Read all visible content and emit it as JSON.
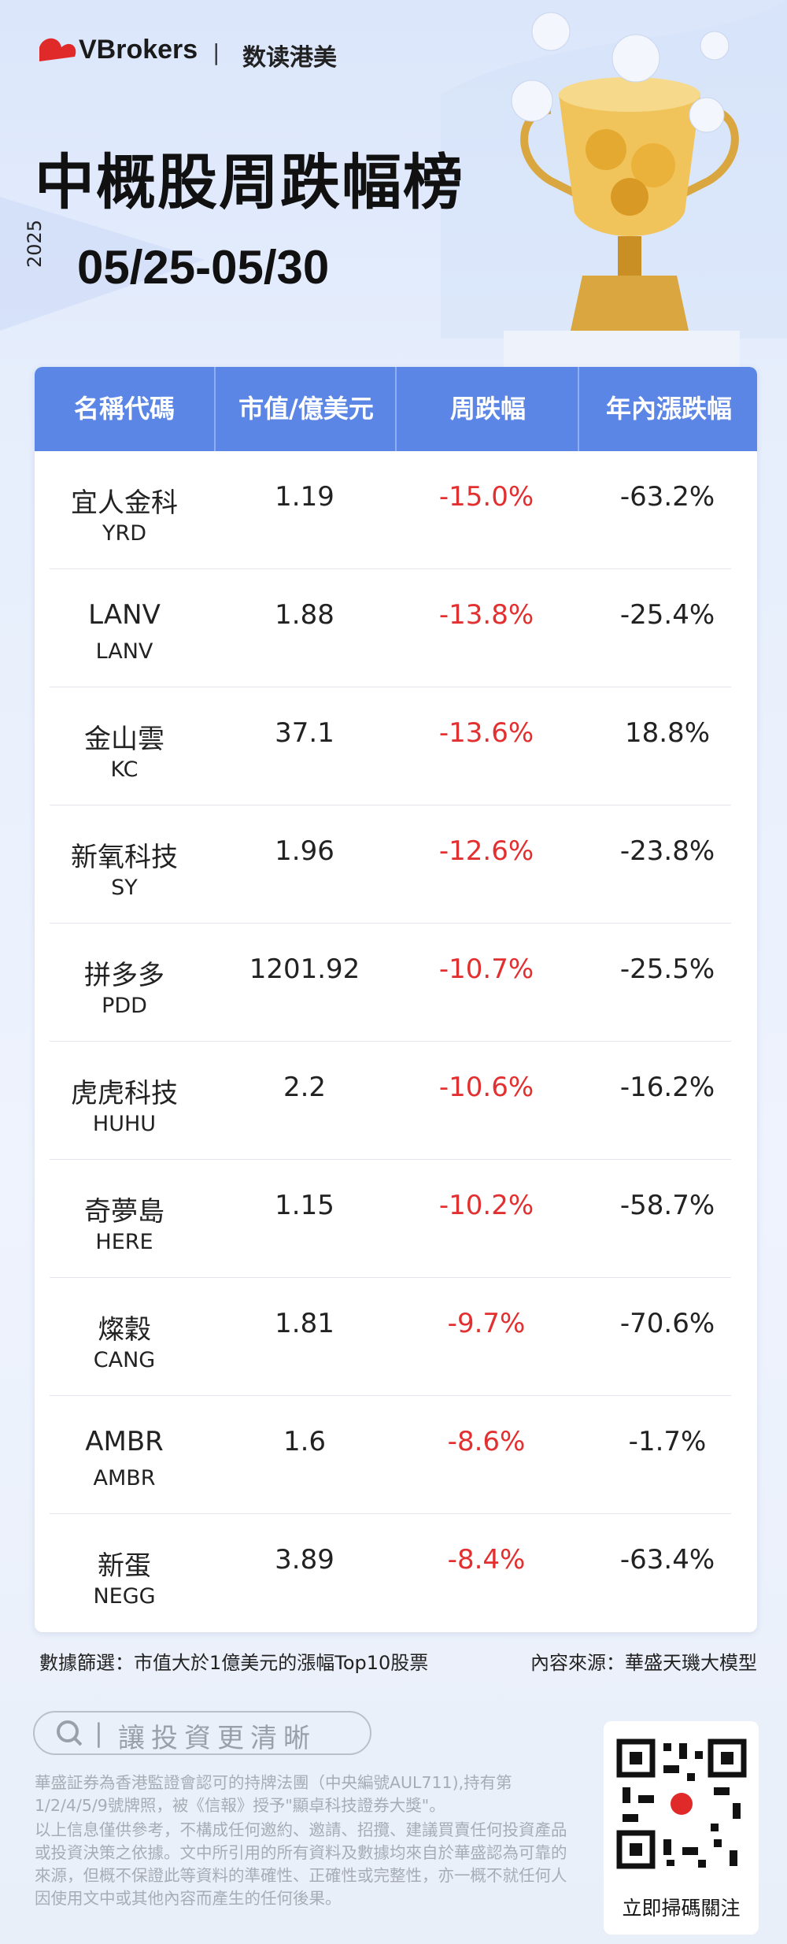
{
  "header": {
    "brand": "VBrokers",
    "subbrand": "数读港美",
    "title": "中概股周跌幅榜",
    "year": "2025",
    "date_range": "05/25-05/30"
  },
  "table": {
    "columns": [
      "名稱代碼",
      "市值/億美元",
      "周跌幅",
      "年內漲跌幅"
    ],
    "rows": [
      {
        "name": "宜人金科",
        "ticker": "YRD",
        "market_cap": "1.19",
        "weekly": "-15.0%",
        "ytd": "-63.2%"
      },
      {
        "name": "LANV",
        "ticker": "LANV",
        "market_cap": "1.88",
        "weekly": "-13.8%",
        "ytd": "-25.4%"
      },
      {
        "name": "金山雲",
        "ticker": "KC",
        "market_cap": "37.1",
        "weekly": "-13.6%",
        "ytd": "18.8%"
      },
      {
        "name": "新氧科技",
        "ticker": "SY",
        "market_cap": "1.96",
        "weekly": "-12.6%",
        "ytd": "-23.8%"
      },
      {
        "name": "拼多多",
        "ticker": "PDD",
        "market_cap": "1201.92",
        "weekly": "-10.7%",
        "ytd": "-25.5%"
      },
      {
        "name": "虎虎科技",
        "ticker": "HUHU",
        "market_cap": "2.2",
        "weekly": "-10.6%",
        "ytd": "-16.2%"
      },
      {
        "name": "奇夢島",
        "ticker": "HERE",
        "market_cap": "1.15",
        "weekly": "-10.2%",
        "ytd": "-58.7%"
      },
      {
        "name": "燦穀",
        "ticker": "CANG",
        "market_cap": "1.81",
        "weekly": "-9.7%",
        "ytd": "-70.6%"
      },
      {
        "name": "AMBR",
        "ticker": "AMBR",
        "market_cap": "1.6",
        "weekly": "-8.6%",
        "ytd": "-1.7%"
      },
      {
        "name": "新蛋",
        "ticker": "NEGG",
        "market_cap": "3.89",
        "weekly": "-8.4%",
        "ytd": "-63.4%"
      }
    ]
  },
  "footer": {
    "filter": "數據篩選：市值大於1億美元的漲幅Top10股票",
    "source": "內容來源：華盛天璣大模型",
    "slogan": "讓投資更清晰",
    "disclaimer": [
      "華盛証券為香港監證會認可的持牌法團（中央編號AUL711),持有第1/2/4/5/9號牌照，被《信報》授予\"顯卓科技證券大獎\"。",
      "以上信息僅供參考，不構成任何邀約、邀請、招攬、建議買賣任何投資產品或投資決策之依據。文中所引用的所有資料及數據均來自於華盛認為可靠的來源，但概不保證此等資料的準確性、正確性或完整性，亦一概不就任何人因使用文中或其他內容而產生的任何後果。"
    ],
    "qr_caption": "立即掃碼關注"
  }
}
